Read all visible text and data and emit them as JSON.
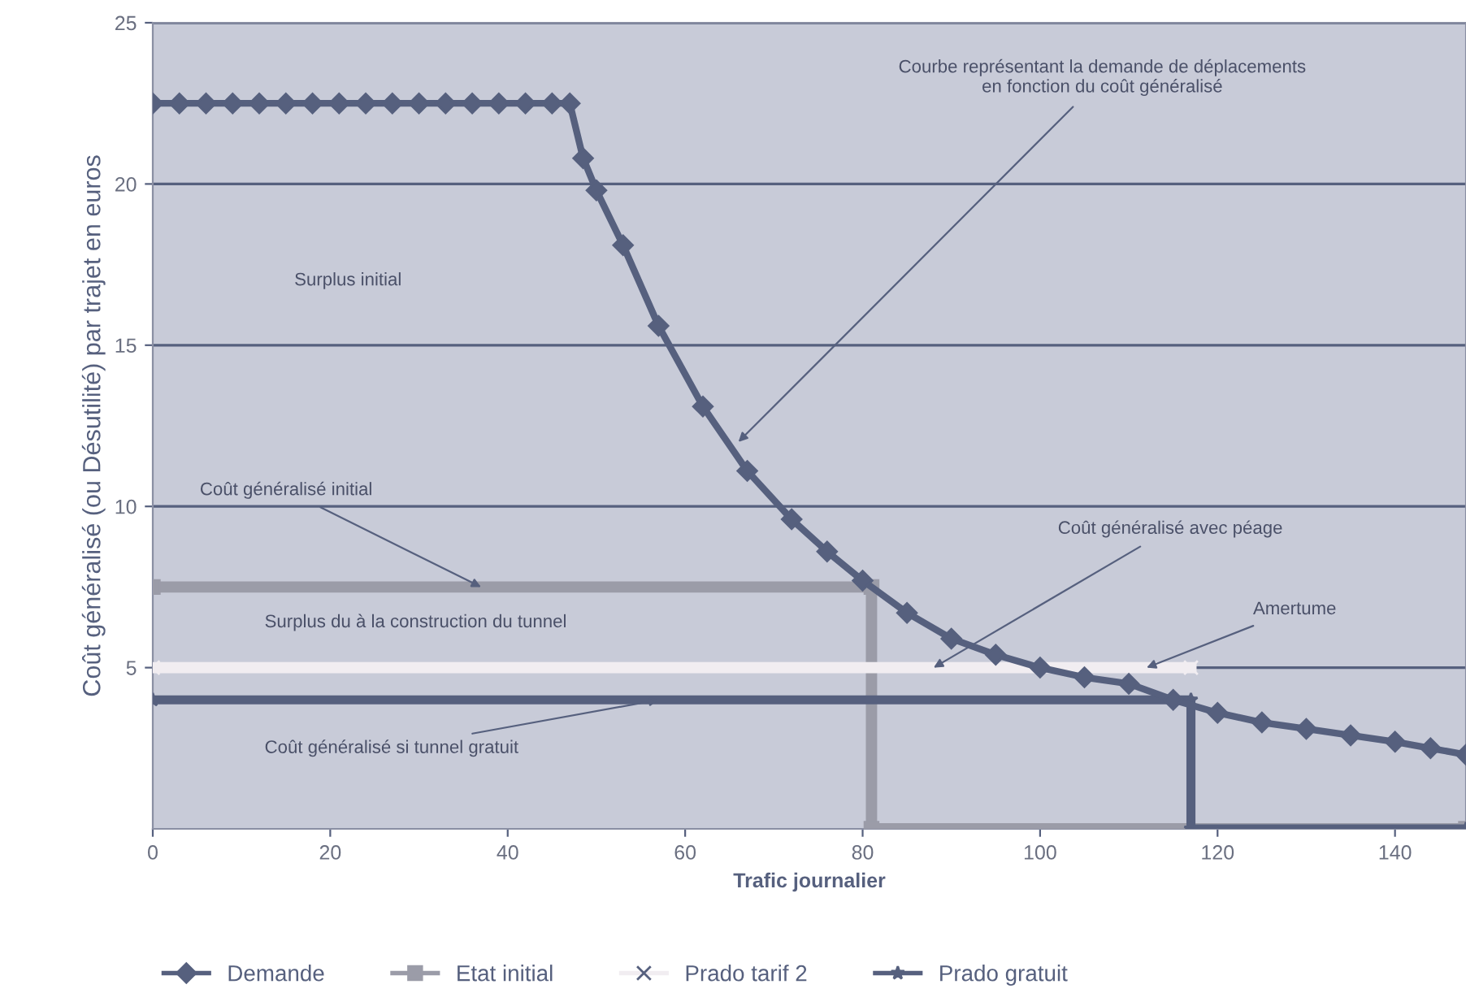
{
  "chart_data": {
    "type": "line",
    "xlabel": "Trafic journalier",
    "ylabel": "Coût généralisé (ou Désutilité) par trajet en euros",
    "xlim": [
      0,
      148
    ],
    "ylim": [
      0,
      25
    ],
    "xticks": [
      0,
      20,
      40,
      60,
      80,
      100,
      120,
      140
    ],
    "yticks": [
      5,
      10,
      15,
      20,
      25
    ],
    "grid": "y",
    "legend": "bottom",
    "series": [
      {
        "name": "Demande",
        "color": "#56607e",
        "marker": "diamond",
        "x": [
          0,
          3,
          6,
          9,
          12,
          15,
          18,
          21,
          24,
          27,
          30,
          33,
          36,
          39,
          42,
          45,
          47,
          48.5,
          50,
          53,
          57,
          62,
          67,
          72,
          76,
          80,
          85,
          90,
          95,
          100,
          105,
          110,
          115,
          120,
          125,
          130,
          135,
          140,
          144,
          148
        ],
        "values": [
          22.5,
          22.5,
          22.5,
          22.5,
          22.5,
          22.5,
          22.5,
          22.5,
          22.5,
          22.5,
          22.5,
          22.5,
          22.5,
          22.5,
          22.5,
          22.5,
          22.5,
          20.8,
          19.8,
          18.1,
          15.6,
          13.1,
          11.1,
          9.6,
          8.6,
          7.7,
          6.7,
          5.9,
          5.4,
          5.0,
          4.7,
          4.5,
          4.0,
          3.6,
          3.3,
          3.1,
          2.9,
          2.7,
          2.5,
          2.3
        ]
      },
      {
        "name": "Etat initial",
        "color": "#9b9ca8",
        "marker": "square",
        "x": [
          0,
          81,
          81,
          148
        ],
        "values": [
          7.5,
          7.5,
          0,
          0
        ]
      },
      {
        "name": "Prado tarif 2",
        "color": "#f1edf1",
        "marker": "cross",
        "x": [
          0,
          117
        ],
        "values": [
          5,
          5
        ]
      },
      {
        "name": "Prado gratuit",
        "color": "#56607e",
        "marker": "star",
        "x": [
          0,
          117,
          117,
          148
        ],
        "values": [
          4,
          4,
          0,
          0
        ]
      }
    ],
    "annotations": [
      {
        "text": "Courbe représentant la demande de déplacements\nen fonction du coût généralisé",
        "x": 66,
        "y": 12
      },
      "Surplus initial",
      {
        "text": "Coût généralisé initial",
        "x": 37,
        "y": 7.5
      },
      "Surplus du à la construction du tunnel",
      {
        "text": "Coût généralisé avec péage",
        "x": 88,
        "y": 5
      },
      {
        "text": "Amertume",
        "x": 112,
        "y": 5
      },
      {
        "text": "Coût généralisé si tunnel gratuit",
        "x": 57,
        "y": 4
      }
    ]
  }
}
